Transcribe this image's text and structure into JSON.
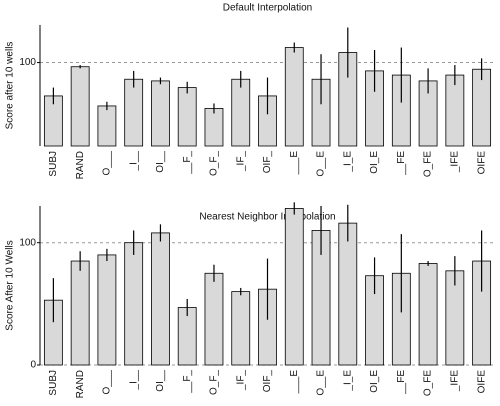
{
  "chart_data": [
    {
      "type": "bar",
      "title": "Default Interpolation",
      "y_label": "Score after 10 wells",
      "categories": [
        "SUBJ",
        "RAND",
        "O___",
        "_I__",
        "OI__",
        "__F_",
        "O_F_",
        "_IF_",
        "OIF_",
        "___E",
        "O__E",
        "_I_E",
        "OI_E",
        "__FE",
        "O_FE",
        "_IFE",
        "OIFE"
      ],
      "values": [
        60,
        95,
        48,
        80,
        78,
        70,
        45,
        80,
        60,
        118,
        80,
        112,
        90,
        85,
        78,
        85,
        92
      ],
      "errors": [
        10,
        2,
        5,
        10,
        4,
        7,
        6,
        10,
        22,
        6,
        30,
        30,
        25,
        33,
        15,
        12,
        13
      ],
      "color": "#d9d9d9",
      "ylim": [
        0,
        145
      ],
      "yticks": [
        100
      ],
      "grid": true
    },
    {
      "type": "bar",
      "title": "Nearest Neighbor Interpolation",
      "y_label": "Score After 10 Wells",
      "categories": [
        "SUBJ",
        "RAND",
        "O___",
        "_I__",
        "OI__",
        "__F_",
        "O_F_",
        "_IF_",
        "OIF_",
        "___E",
        "O__E",
        "_I_E",
        "OI_E",
        "__FE",
        "O_FE",
        "_IFE",
        "OIFE"
      ],
      "values": [
        53,
        85,
        90,
        100,
        108,
        47,
        75,
        60,
        62,
        128,
        110,
        116,
        73,
        75,
        83,
        77,
        85
      ],
      "errors": [
        18,
        8,
        5,
        10,
        7,
        7,
        7,
        3,
        25,
        5,
        20,
        15,
        15,
        32,
        2,
        12,
        25
      ],
      "color": "#d9d9d9",
      "ylim": [
        0,
        130
      ],
      "yticks": [
        0,
        100
      ],
      "grid": true
    }
  ]
}
